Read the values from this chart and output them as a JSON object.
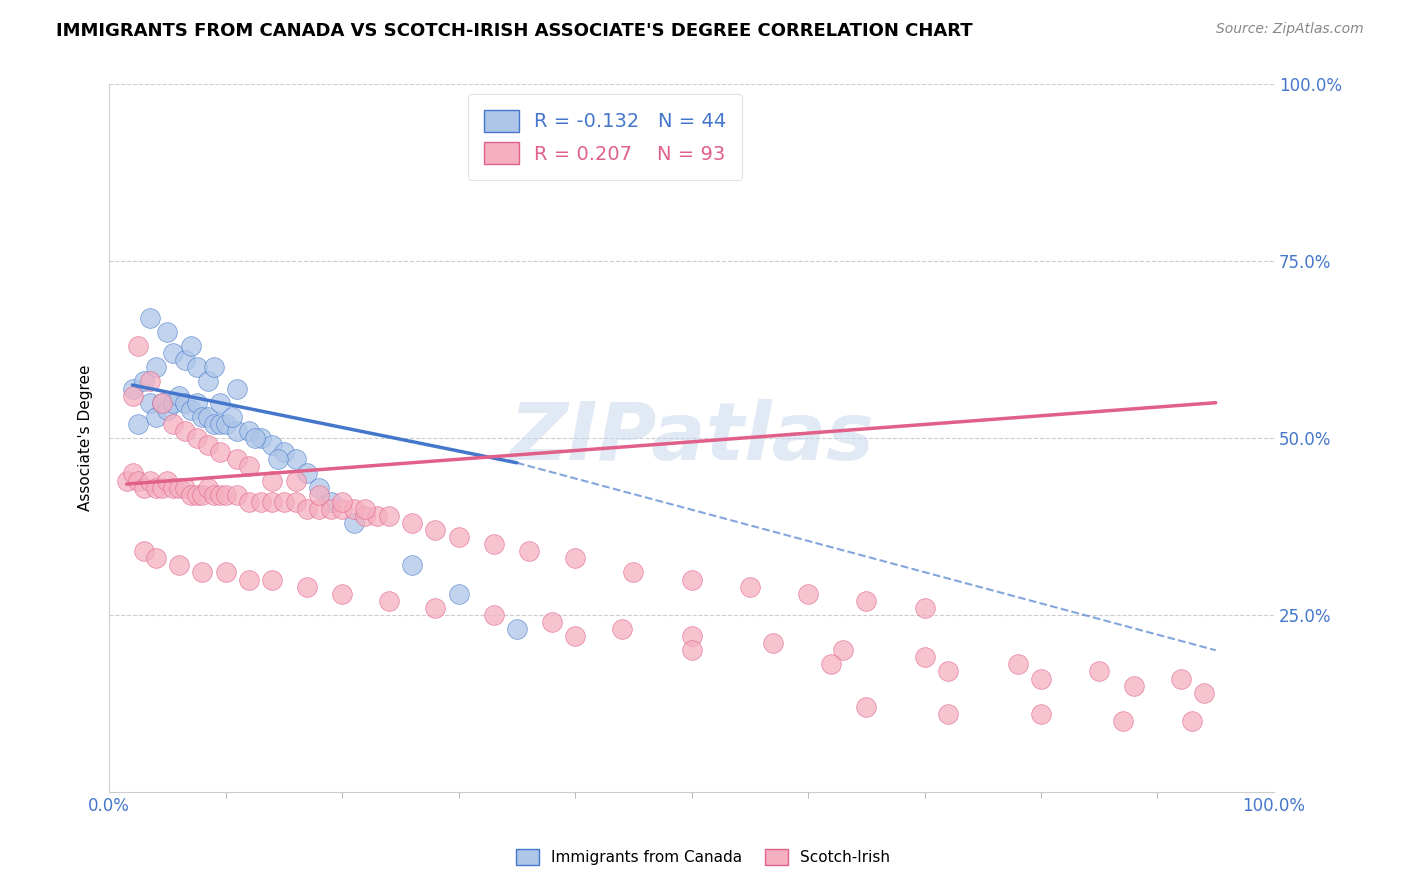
{
  "title": "IMMIGRANTS FROM CANADA VS SCOTCH-IRISH ASSOCIATE'S DEGREE CORRELATION CHART",
  "source_text": "Source: ZipAtlas.com",
  "ylabel": "Associate's Degree",
  "watermark": "ZIPatlas",
  "xlim": [
    0,
    100
  ],
  "ylim": [
    0,
    100
  ],
  "xtick_labels": [
    "0.0%",
    "100.0%"
  ],
  "ytick_labels": [
    "25.0%",
    "50.0%",
    "75.0%",
    "100.0%"
  ],
  "ytick_positions": [
    25,
    50,
    75,
    100
  ],
  "legend_blue_label": "Immigrants from Canada",
  "legend_pink_label": "Scotch-Irish",
  "R_blue": -0.132,
  "N_blue": 44,
  "R_pink": 0.207,
  "N_pink": 93,
  "color_blue": "#aec6e8",
  "color_pink": "#f4afc0",
  "line_blue": "#4477cc",
  "line_pink": "#e0608a",
  "title_fontsize": 13,
  "blue_x": [
    2.0,
    2.5,
    3.5,
    4.0,
    4.5,
    5.0,
    5.5,
    6.0,
    6.5,
    7.0,
    7.5,
    8.0,
    8.5,
    9.0,
    9.5,
    10.0,
    11.0,
    12.0,
    13.0,
    14.0,
    15.0,
    16.0,
    17.0,
    18.0,
    19.0,
    21.0,
    26.0,
    30.0,
    35.0,
    3.0,
    4.0,
    5.5,
    6.5,
    7.5,
    8.5,
    9.5,
    10.5,
    12.5,
    14.5,
    3.5,
    5.0,
    7.0,
    9.0,
    11.0
  ],
  "blue_y": [
    57.0,
    52.0,
    55.0,
    53.0,
    55.0,
    54.0,
    55.0,
    56.0,
    55.0,
    54.0,
    55.0,
    53.0,
    53.0,
    52.0,
    52.0,
    52.0,
    51.0,
    51.0,
    50.0,
    49.0,
    48.0,
    47.0,
    45.0,
    43.0,
    41.0,
    38.0,
    32.0,
    28.0,
    23.0,
    58.0,
    60.0,
    62.0,
    61.0,
    60.0,
    58.0,
    55.0,
    53.0,
    50.0,
    47.0,
    67.0,
    65.0,
    63.0,
    60.0,
    57.0
  ],
  "pink_x": [
    1.5,
    2.0,
    2.5,
    3.0,
    3.5,
    4.0,
    4.5,
    5.0,
    5.5,
    6.0,
    6.5,
    7.0,
    7.5,
    8.0,
    8.5,
    9.0,
    9.5,
    10.0,
    11.0,
    12.0,
    13.0,
    14.0,
    15.0,
    16.0,
    17.0,
    18.0,
    19.0,
    20.0,
    21.0,
    22.0,
    23.0,
    2.0,
    2.5,
    3.5,
    4.5,
    5.5,
    6.5,
    7.5,
    8.5,
    9.5,
    11.0,
    12.0,
    14.0,
    16.0,
    18.0,
    20.0,
    22.0,
    24.0,
    26.0,
    28.0,
    30.0,
    33.0,
    36.0,
    40.0,
    45.0,
    50.0,
    55.0,
    60.0,
    65.0,
    70.0,
    3.0,
    4.0,
    6.0,
    8.0,
    10.0,
    12.0,
    14.0,
    17.0,
    20.0,
    24.0,
    28.0,
    33.0,
    38.0,
    44.0,
    50.0,
    57.0,
    63.0,
    70.0,
    78.0,
    85.0,
    92.0,
    40.0,
    50.0,
    62.0,
    72.0,
    80.0,
    88.0,
    94.0,
    65.0,
    72.0,
    80.0,
    87.0,
    93.0
  ],
  "pink_y": [
    44.0,
    45.0,
    44.0,
    43.0,
    44.0,
    43.0,
    43.0,
    44.0,
    43.0,
    43.0,
    43.0,
    42.0,
    42.0,
    42.0,
    43.0,
    42.0,
    42.0,
    42.0,
    42.0,
    41.0,
    41.0,
    41.0,
    41.0,
    41.0,
    40.0,
    40.0,
    40.0,
    40.0,
    40.0,
    39.0,
    39.0,
    56.0,
    63.0,
    58.0,
    55.0,
    52.0,
    51.0,
    50.0,
    49.0,
    48.0,
    47.0,
    46.0,
    44.0,
    44.0,
    42.0,
    41.0,
    40.0,
    39.0,
    38.0,
    37.0,
    36.0,
    35.0,
    34.0,
    33.0,
    31.0,
    30.0,
    29.0,
    28.0,
    27.0,
    26.0,
    34.0,
    33.0,
    32.0,
    31.0,
    31.0,
    30.0,
    30.0,
    29.0,
    28.0,
    27.0,
    26.0,
    25.0,
    24.0,
    23.0,
    22.0,
    21.0,
    20.0,
    19.0,
    18.0,
    17.0,
    16.0,
    22.0,
    20.0,
    18.0,
    17.0,
    16.0,
    15.0,
    14.0,
    12.0,
    11.0,
    11.0,
    10.0,
    10.0
  ],
  "blue_line_x_start": 2.0,
  "blue_line_x_end": 35.0,
  "blue_line_y_start": 57.5,
  "blue_line_y_end": 46.5,
  "blue_dashed_x_end": 95.0,
  "blue_dashed_y_end": 20.0,
  "pink_line_x_start": 1.5,
  "pink_line_x_end": 95.0,
  "pink_line_y_start": 43.5,
  "pink_line_y_end": 55.0
}
